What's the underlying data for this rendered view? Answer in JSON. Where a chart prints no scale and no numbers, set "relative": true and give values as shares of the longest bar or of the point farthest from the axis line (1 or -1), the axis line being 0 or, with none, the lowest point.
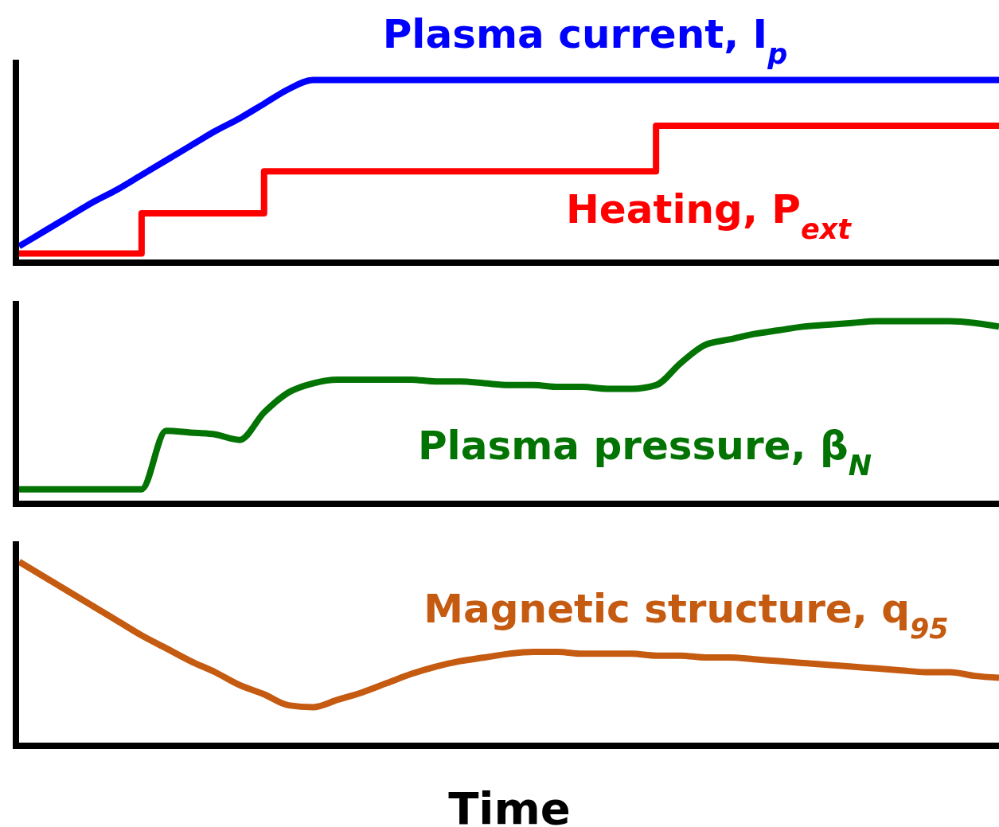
{
  "chart_data": [
    {
      "type": "line",
      "relative": true,
      "categories": [
        null,
        null,
        null,
        null,
        null,
        null,
        null,
        null,
        null,
        null,
        null,
        null,
        null,
        null,
        null,
        null,
        null,
        null,
        null,
        null,
        null,
        null,
        null,
        null,
        null,
        null,
        null,
        null,
        null,
        null,
        null,
        null,
        null,
        null,
        null,
        null,
        null,
        null,
        null,
        null,
        null
      ],
      "series": [
        {
          "name": "Plasma current, I$_{p}$",
          "color": "#0000ff",
          "values": [
            0.09,
            0.17,
            0.25,
            0.33,
            0.4,
            0.48,
            0.56,
            0.64,
            0.72,
            0.79,
            0.87,
            0.95,
            1,
            1,
            1,
            1,
            1,
            1,
            1,
            1,
            1,
            1,
            1,
            1,
            1,
            1,
            1,
            1,
            1,
            1,
            1,
            1,
            1,
            1,
            1,
            1,
            1,
            1,
            1,
            1,
            1
          ]
        },
        {
          "name": "Heating, P$_{ext}$",
          "color": "#ff0000",
          "type": "step",
          "values": [
            0.05,
            0.05,
            0.05,
            0.05,
            0.05,
            0.27,
            0.27,
            0.27,
            0.27,
            0.27,
            0.5,
            0.5,
            0.5,
            0.5,
            0.5,
            0.5,
            0.5,
            0.5,
            0.5,
            0.5,
            0.5,
            0.5,
            0.5,
            0.5,
            0.5,
            0.5,
            0.75,
            0.75,
            0.75,
            0.75,
            0.75,
            0.75,
            0.75,
            0.75,
            0.75,
            0.75,
            0.75,
            0.75,
            0.75,
            0.75,
            0.75
          ]
        }
      ]
    },
    {
      "type": "line",
      "relative": true,
      "categories": [
        null,
        null,
        null,
        null,
        null,
        null,
        null,
        null,
        null,
        null,
        null,
        null,
        null,
        null,
        null,
        null,
        null,
        null,
        null,
        null,
        null,
        null,
        null,
        null,
        null,
        null,
        null,
        null,
        null,
        null,
        null,
        null,
        null,
        null,
        null,
        null,
        null,
        null,
        null,
        null,
        null
      ],
      "series": [
        {
          "name": "Plasma pressure, β$_{N}$",
          "color": "#037303",
          "values": [
            0.08,
            0.08,
            0.08,
            0.08,
            0.08,
            0.08,
            0.4,
            0.39,
            0.38,
            0.35,
            0.5,
            0.61,
            0.66,
            0.68,
            0.68,
            0.68,
            0.68,
            0.67,
            0.67,
            0.66,
            0.65,
            0.65,
            0.64,
            0.64,
            0.63,
            0.63,
            0.65,
            0.77,
            0.87,
            0.9,
            0.93,
            0.95,
            0.97,
            0.98,
            0.99,
            1,
            1,
            1,
            1,
            0.99,
            0.97
          ]
        }
      ]
    },
    {
      "type": "line",
      "relative": true,
      "xlabel": "Time",
      "categories": [
        null,
        null,
        null,
        null,
        null,
        null,
        null,
        null,
        null,
        null,
        null,
        null,
        null,
        null,
        null,
        null,
        null,
        null,
        null,
        null,
        null,
        null,
        null,
        null,
        null,
        null,
        null,
        null,
        null,
        null,
        null,
        null,
        null,
        null,
        null,
        null,
        null,
        null,
        null,
        null,
        null
      ],
      "series": [
        {
          "name": "Magnetic structure, q$_{95}$",
          "color": "#c55a11",
          "values": [
            1,
            0.92,
            0.84,
            0.76,
            0.68,
            0.6,
            0.53,
            0.46,
            0.4,
            0.33,
            0.28,
            0.22,
            0.21,
            0.25,
            0.29,
            0.34,
            0.39,
            0.43,
            0.46,
            0.48,
            0.5,
            0.51,
            0.51,
            0.5,
            0.5,
            0.5,
            0.49,
            0.49,
            0.48,
            0.48,
            0.47,
            0.46,
            0.45,
            0.44,
            0.43,
            0.42,
            0.41,
            0.4,
            0.4,
            0.38,
            0.37
          ]
        }
      ]
    }
  ]
}
